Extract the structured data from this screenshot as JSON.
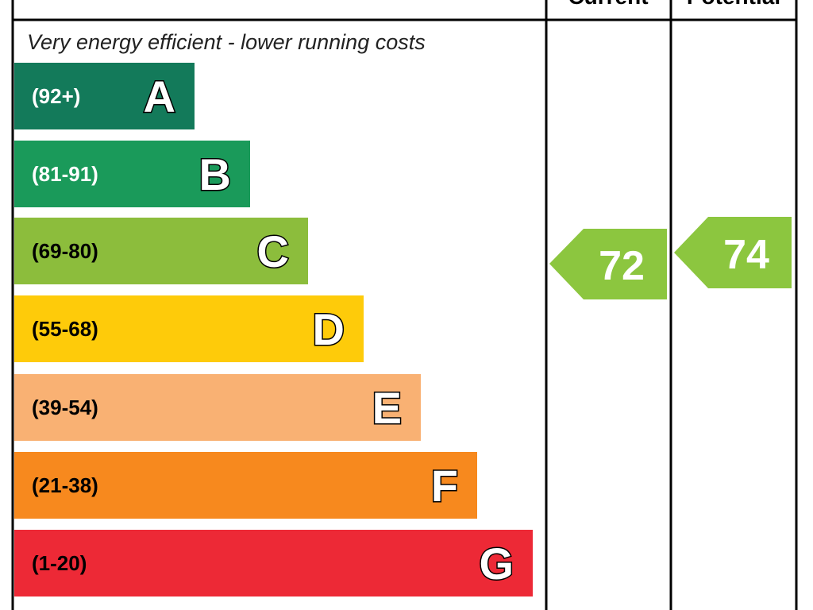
{
  "header": {
    "current": "Current",
    "potential": "Potential"
  },
  "description": "Very energy efficient - lower running costs",
  "bands": [
    {
      "range": "(92+)",
      "letter": "A"
    },
    {
      "range": "(81-91)",
      "letter": "B"
    },
    {
      "range": "(69-80)",
      "letter": "C"
    },
    {
      "range": "(55-68)",
      "letter": "D"
    },
    {
      "range": "(39-54)",
      "letter": "E"
    },
    {
      "range": "(21-38)",
      "letter": "F"
    },
    {
      "range": "(1-20)",
      "letter": "G"
    }
  ],
  "current": "72",
  "potential": "74"
}
